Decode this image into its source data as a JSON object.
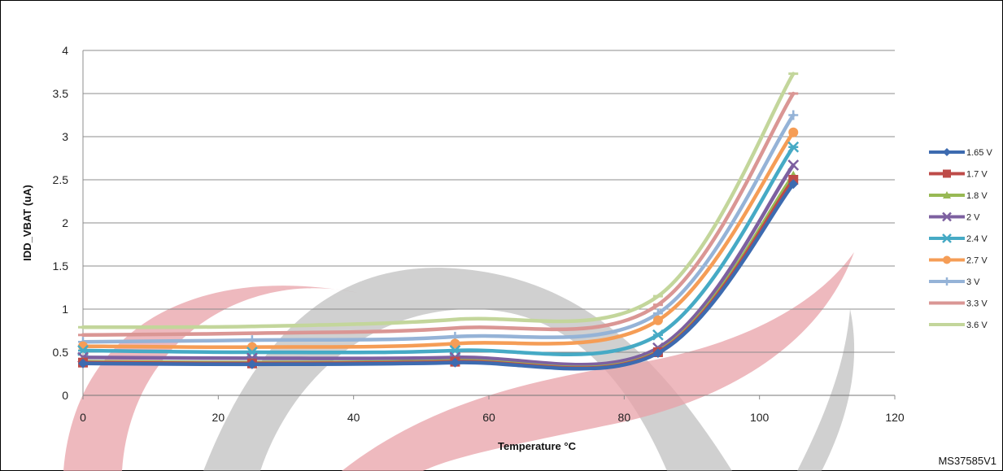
{
  "chart_data": {
    "type": "line",
    "title": "",
    "xlabel": "Temperature °C",
    "ylabel": "IDD_VBAT (uA)",
    "xlim": [
      0,
      120
    ],
    "ylim": [
      0,
      4
    ],
    "xticks": [
      0,
      20,
      40,
      60,
      80,
      100,
      120
    ],
    "yticks": [
      0,
      0.5,
      1,
      1.5,
      2,
      2.5,
      3,
      3.5,
      4
    ],
    "grid": "horizontal",
    "legend_position": "right",
    "x": [
      0,
      25,
      55,
      85,
      105
    ],
    "series": [
      {
        "name": "1.65 V",
        "color": "#3d6bb0",
        "marker": "diamond",
        "values": [
          0.37,
          0.36,
          0.38,
          0.49,
          2.45
        ]
      },
      {
        "name": "1.7 V",
        "color": "#be4b48",
        "marker": "square",
        "values": [
          0.38,
          0.37,
          0.39,
          0.5,
          2.5
        ]
      },
      {
        "name": "1.8 V",
        "color": "#98b954",
        "marker": "triangle",
        "values": [
          0.39,
          0.38,
          0.4,
          0.51,
          2.55
        ]
      },
      {
        "name": "2 V",
        "color": "#7d60a0",
        "marker": "x",
        "values": [
          0.44,
          0.43,
          0.44,
          0.55,
          2.67
        ]
      },
      {
        "name": "2.4 V",
        "color": "#46aac5",
        "marker": "asterisk",
        "values": [
          0.52,
          0.5,
          0.52,
          0.7,
          2.88
        ]
      },
      {
        "name": "2.7 V",
        "color": "#f59d56",
        "marker": "circle",
        "values": [
          0.57,
          0.56,
          0.6,
          0.87,
          3.05
        ]
      },
      {
        "name": "3 V",
        "color": "#95b3d7",
        "marker": "plus",
        "values": [
          0.62,
          0.64,
          0.68,
          0.95,
          3.25
        ]
      },
      {
        "name": "3.3 V",
        "color": "#da9694",
        "marker": "dash",
        "values": [
          0.7,
          0.72,
          0.78,
          1.05,
          3.5
        ]
      },
      {
        "name": "3.6 V",
        "color": "#c3d69b",
        "marker": "dash",
        "values": [
          0.79,
          0.8,
          0.88,
          1.15,
          3.73
        ]
      }
    ]
  },
  "figure_code": "MS37585V1"
}
